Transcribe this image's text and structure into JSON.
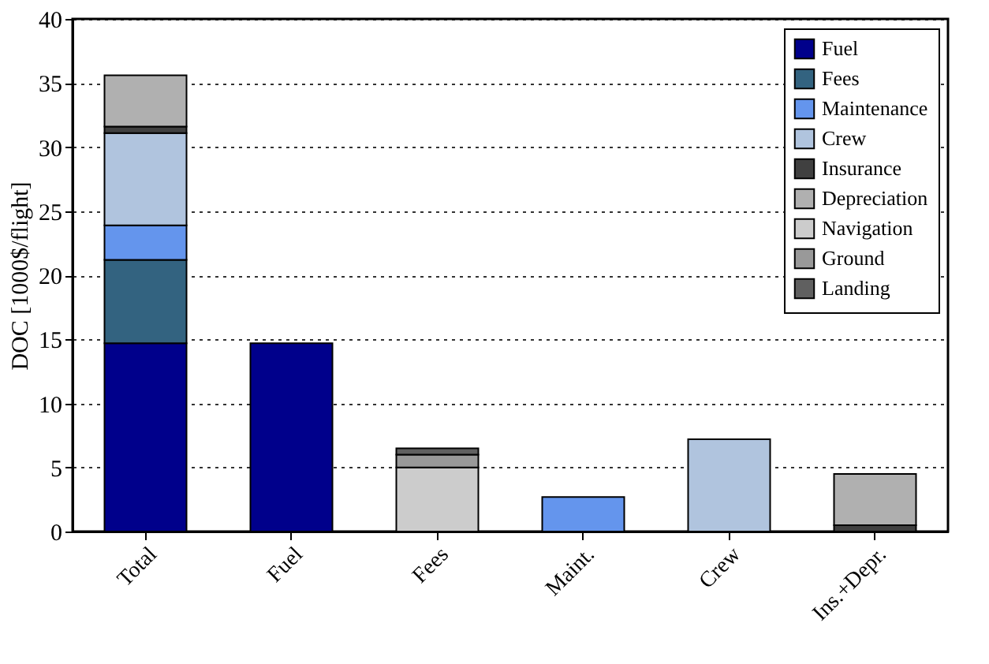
{
  "chart_data": {
    "type": "bar",
    "stacked": true,
    "ylabel": "DOC [1000$/flight]",
    "categories": [
      "Total",
      "Fuel",
      "Fees",
      "Maint.",
      "Crew",
      "Ins.+Depr."
    ],
    "series": [
      {
        "name": "Fuel",
        "color": "#00008b",
        "values": [
          14.7,
          14.7,
          null,
          null,
          null,
          null
        ]
      },
      {
        "name": "Fees",
        "color": "#336380",
        "values": [
          6.5,
          null,
          null,
          null,
          null,
          null
        ]
      },
      {
        "name": "Maintenance",
        "color": "#6495ed",
        "values": [
          2.7,
          null,
          null,
          2.7,
          null,
          null
        ]
      },
      {
        "name": "Crew",
        "color": "#b0c4de",
        "values": [
          7.2,
          null,
          null,
          null,
          7.2,
          null
        ]
      },
      {
        "name": "Insurance",
        "color": "#404040",
        "values": [
          0.5,
          null,
          null,
          null,
          null,
          0.5
        ]
      },
      {
        "name": "Depreciation",
        "color": "#b0b0b0",
        "values": [
          4.0,
          null,
          null,
          null,
          null,
          4.0
        ]
      },
      {
        "name": "Navigation",
        "color": "#cccccc",
        "values": [
          null,
          null,
          5.0,
          null,
          null,
          null
        ]
      },
      {
        "name": "Ground",
        "color": "#999999",
        "values": [
          null,
          null,
          1.0,
          null,
          null,
          null
        ]
      },
      {
        "name": "Landing",
        "color": "#606060",
        "values": [
          null,
          null,
          0.5,
          null,
          null,
          null
        ]
      }
    ],
    "ylim": [
      0,
      40
    ],
    "yticks": [
      0,
      5,
      10,
      15,
      20,
      25,
      30,
      35,
      40
    ],
    "grid": "y",
    "legend": "top right"
  }
}
